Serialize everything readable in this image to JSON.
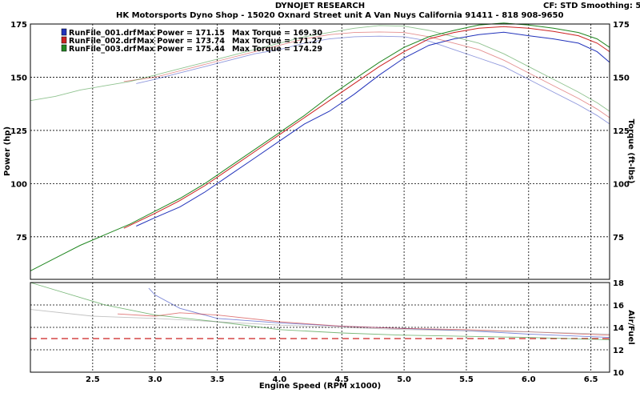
{
  "header": {
    "company": "DYNOJET RESEARCH",
    "shop": "HK Motorsports Dyno Shop - 15020 Oxnard Street  unit A Van Nuys California 91411 - 818 908-9650",
    "settings": "CF: STD  Smoothing: 5"
  },
  "chart_data": [
    {
      "type": "line",
      "xlabel": "Engine Speed (RPM x1000)",
      "ylabel": "Power (hp)",
      "y2label": "Torque (ft-lbs)",
      "xlim": [
        2.0,
        6.65
      ],
      "ylim": [
        55,
        175
      ],
      "y2lim": [
        55,
        175
      ],
      "x_ticks": [
        "2.5",
        "3.0",
        "3.5",
        "4.0",
        "4.5",
        "5.0",
        "5.5",
        "6.0",
        "6.5"
      ],
      "y_ticks": [
        "75",
        "100",
        "125",
        "150",
        "175"
      ],
      "y2_ticks": [
        "75",
        "100",
        "125",
        "150",
        "175"
      ],
      "grid": true,
      "legend_position": "top-left",
      "series": [
        {
          "name": "RunFile_001.drf",
          "max_power_label": "Max Power = 171.15",
          "max_torque_label": "Max Torque = 169.30",
          "color": "#2233bb",
          "power": {
            "x": [
              2.85,
              3.0,
              3.2,
              3.4,
              3.6,
              3.8,
              4.0,
              4.2,
              4.4,
              4.6,
              4.8,
              5.0,
              5.2,
              5.4,
              5.6,
              5.8,
              6.0,
              6.2,
              6.4,
              6.55,
              6.65
            ],
            "y": [
              80,
              84,
              89,
              96,
              104,
              112,
              120,
              128,
              134,
              142,
              151,
              159,
              165,
              168,
              170,
              171.15,
              169.5,
              168,
              166,
              162,
              157
            ]
          },
          "torque": {
            "x": [
              2.85,
              3.0,
              3.2,
              3.4,
              3.6,
              3.8,
              4.0,
              4.2,
              4.4,
              4.6,
              4.8,
              5.0,
              5.2,
              5.4,
              5.6,
              5.8,
              6.0,
              6.2,
              6.4,
              6.55,
              6.65
            ],
            "y": [
              147,
              149,
              152,
              155,
              158,
              161,
              163,
              166,
              168,
              169,
              169.3,
              169,
              167,
              163,
              159,
              155,
              149,
              143,
              137,
              132,
              128
            ]
          }
        },
        {
          "name": "RunFile_002.drf",
          "max_power_label": "Max Power = 173.74",
          "max_torque_label": "Max Torque = 171.27",
          "color": "#cc2222",
          "power": {
            "x": [
              2.75,
              3.0,
              3.2,
              3.4,
              3.6,
              3.8,
              4.0,
              4.2,
              4.4,
              4.6,
              4.8,
              5.0,
              5.2,
              5.4,
              5.6,
              5.8,
              6.0,
              6.2,
              6.4,
              6.55,
              6.65
            ],
            "y": [
              79,
              86,
              92,
              99,
              107,
              115,
              123,
              131,
              139,
              147,
              155,
              162,
              168,
              171,
              173,
              173.74,
              173,
              171.5,
              169.5,
              166,
              162
            ]
          },
          "torque": {
            "x": [
              2.75,
              3.0,
              3.2,
              3.4,
              3.6,
              3.8,
              4.0,
              4.2,
              4.4,
              4.6,
              4.8,
              5.0,
              5.2,
              5.4,
              5.6,
              5.8,
              6.0,
              6.2,
              6.4,
              6.55,
              6.65
            ],
            "y": [
              148,
              150,
              153,
              156,
              159,
              162,
              165,
              168,
              170,
              171,
              171.27,
              171,
              169,
              166,
              163,
              158,
              152,
              146,
              140,
              135,
              131
            ]
          }
        },
        {
          "name": "RunFile_003.drf",
          "max_power_label": "Max Power = 175.44",
          "max_torque_label": "Max Torque = 174.29",
          "color": "#228822",
          "power": {
            "x": [
              2.0,
              2.2,
              2.4,
              2.6,
              2.8,
              3.0,
              3.2,
              3.4,
              3.6,
              3.8,
              4.0,
              4.2,
              4.4,
              4.6,
              4.8,
              5.0,
              5.2,
              5.4,
              5.6,
              5.8,
              6.0,
              6.2,
              6.4,
              6.55,
              6.65
            ],
            "y": [
              59,
              65,
              71,
              76,
              81,
              87,
              93,
              100,
              108,
              116,
              124,
              132,
              141,
              149,
              157,
              164,
              169,
              172,
              174.5,
              175.44,
              174.5,
              173,
              171,
              168,
              164
            ]
          },
          "torque": {
            "x": [
              2.0,
              2.2,
              2.4,
              2.6,
              2.8,
              3.0,
              3.2,
              3.4,
              3.6,
              3.8,
              4.0,
              4.2,
              4.4,
              4.6,
              4.8,
              5.0,
              5.2,
              5.4,
              5.6,
              5.8,
              6.0,
              6.2,
              6.4,
              6.55,
              6.65
            ],
            "y": [
              139,
              141,
              144,
              146,
              148,
              151,
              154,
              157,
              160,
              163,
              166,
              169,
              171,
              173,
              174.29,
              174,
              172,
              169,
              166,
              161,
              155,
              149,
              143,
              138,
              134
            ]
          }
        }
      ]
    },
    {
      "type": "line",
      "xlabel": "Engine Speed (RPM x1000)",
      "y2label": "Air/Fuel",
      "xlim": [
        2.0,
        6.65
      ],
      "y2lim": [
        10,
        18
      ],
      "y2_ticks": [
        "10",
        "12",
        "14",
        "16",
        "18"
      ],
      "grid": true,
      "reference_line": {
        "y": 13,
        "color": "#cc2222",
        "style": "dashed"
      },
      "series": [
        {
          "name": "RunFile_001.drf",
          "color": "#2233bb",
          "x": [
            2.95,
            3.0,
            3.2,
            3.5,
            4.0,
            4.5,
            5.0,
            5.5,
            6.0,
            6.65
          ],
          "y": [
            17.5,
            16.9,
            15.7,
            14.8,
            14.4,
            14.1,
            13.9,
            13.7,
            13.4,
            13.1
          ]
        },
        {
          "name": "RunFile_002.drf",
          "color": "#cc2222",
          "x": [
            2.7,
            3.0,
            3.2,
            3.5,
            4.0,
            4.5,
            5.0,
            5.5,
            6.0,
            6.65
          ],
          "y": [
            15.2,
            15.0,
            15.3,
            15.1,
            14.5,
            14.1,
            13.9,
            13.8,
            13.6,
            13.3
          ]
        },
        {
          "name": "RunFile_003.drf",
          "color": "#228822",
          "x": [
            2.0,
            2.3,
            2.6,
            3.0,
            3.5,
            4.0,
            4.5,
            5.0,
            5.5,
            6.0,
            6.65
          ],
          "y": [
            18.0,
            17.0,
            16.0,
            15.1,
            14.5,
            13.8,
            13.5,
            13.3,
            13.2,
            13.1,
            12.9
          ]
        },
        {
          "name": "",
          "color": "#999999",
          "x": [
            2.0,
            2.5,
            3.0,
            3.5,
            4.0,
            4.5,
            5.0,
            5.5,
            6.0,
            6.65
          ],
          "y": [
            15.6,
            15.0,
            14.8,
            14.5,
            14.2,
            14.0,
            13.8,
            13.7,
            13.6,
            13.4
          ]
        }
      ]
    }
  ]
}
